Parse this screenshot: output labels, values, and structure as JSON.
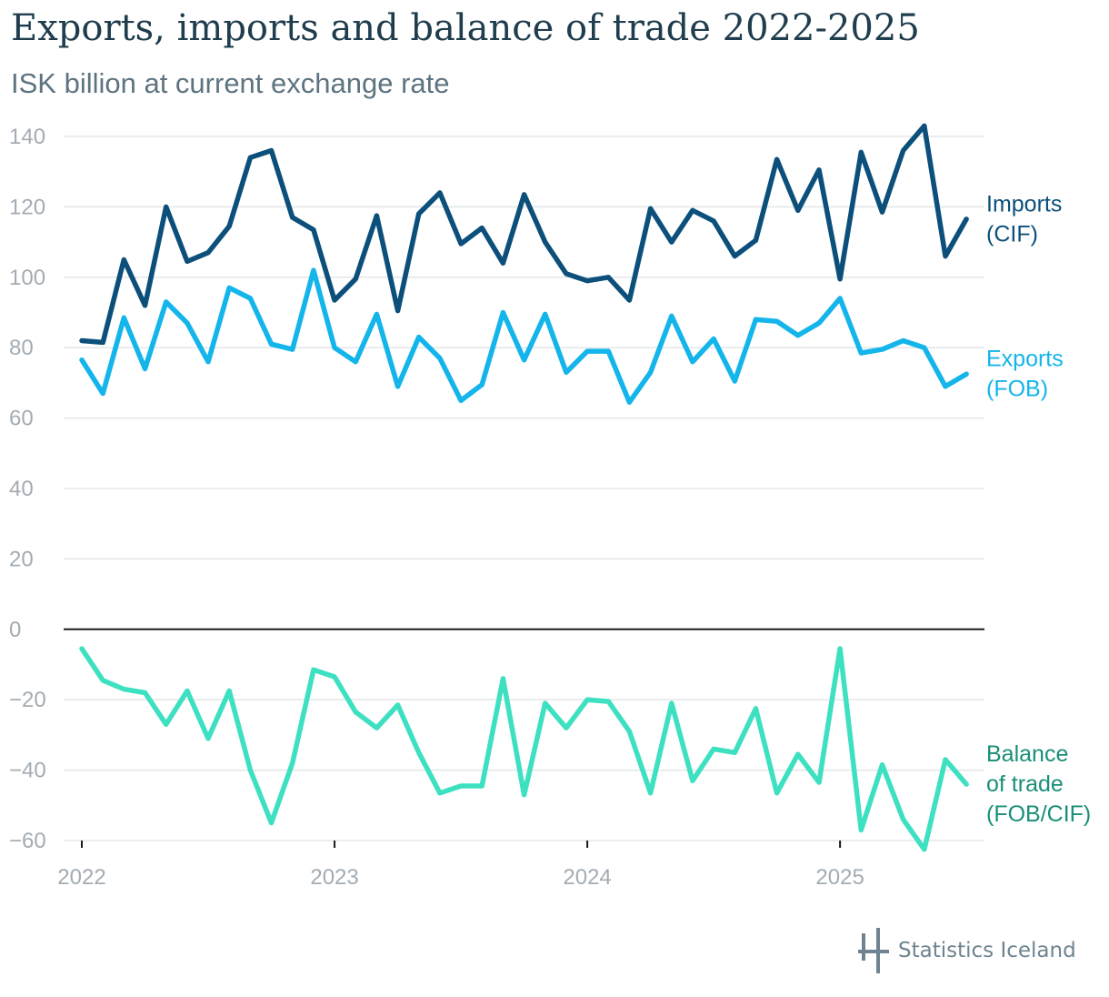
{
  "chart_data": {
    "type": "line",
    "title": "Exports, imports and balance of trade 2022-2025",
    "subtitle": "ISK billion at current exchange rate",
    "xlabel": "",
    "ylabel": "",
    "ylim": [
      -60,
      140
    ],
    "yticks": [
      "140",
      "120",
      "100",
      "80",
      "60",
      "40",
      "20",
      "0",
      "−20",
      "−40",
      "−60"
    ],
    "ytick_values": [
      140,
      120,
      100,
      80,
      60,
      40,
      20,
      0,
      -20,
      -40,
      -60
    ],
    "xticks": [
      "2022",
      "2023",
      "2024",
      "2025"
    ],
    "x_start": "2022-01",
    "x_end": "2025-06",
    "grid": true,
    "series": [
      {
        "key": "imports",
        "name_lines": [
          "Imports",
          "(CIF)"
        ],
        "color": "#0b4f7a",
        "values": [
          82,
          81.5,
          105,
          92,
          120,
          104.5,
          107,
          114.5,
          134,
          136,
          117,
          113.5,
          93.5,
          99.5,
          117.5,
          90.5,
          118,
          124,
          109.5,
          114,
          104,
          123.5,
          110,
          101,
          99,
          100,
          93.5,
          119.5,
          110,
          119,
          116,
          106,
          110.5,
          133.5,
          119,
          130.5,
          99.5,
          135.5,
          118.5,
          136,
          143,
          106,
          116.5
        ]
      },
      {
        "key": "exports",
        "name_lines": [
          "Exports",
          "(FOB)"
        ],
        "color": "#13b5ea",
        "values": [
          76.5,
          67,
          88.5,
          74,
          93,
          87,
          76,
          97,
          94,
          81,
          79.5,
          102,
          80,
          76,
          89.5,
          69,
          83,
          77,
          65,
          69.5,
          90,
          76.5,
          89.5,
          73,
          79,
          79,
          64.5,
          73,
          89,
          76,
          82.5,
          70.5,
          88,
          87.5,
          83.5,
          87,
          94,
          78.5,
          79.5,
          82,
          80,
          69,
          72.5
        ]
      },
      {
        "key": "balance",
        "name_lines": [
          "Balance",
          "of trade",
          "(FOB/CIF)"
        ],
        "color": "#3de0c0",
        "label_color": "#1a8f78",
        "values": [
          -5.5,
          -14.5,
          -17,
          -18,
          -27,
          -17.5,
          -31,
          -17.5,
          -40,
          -55,
          -38,
          -11.5,
          -13.5,
          -23.5,
          -28,
          -21.5,
          -35,
          -46.5,
          -44.5,
          -44.5,
          -14,
          -47,
          -21,
          -28,
          -20,
          -20.5,
          -29,
          -46.5,
          -21,
          -43,
          -34,
          -35,
          -22.5,
          -46.5,
          -35.5,
          -43.5,
          -5.5,
          -57,
          -38.5,
          -54,
          -62.5,
          -37,
          -44
        ]
      }
    ]
  },
  "branding": {
    "logo_text": "Statistics Iceland",
    "logo_color": "#6f8490"
  }
}
